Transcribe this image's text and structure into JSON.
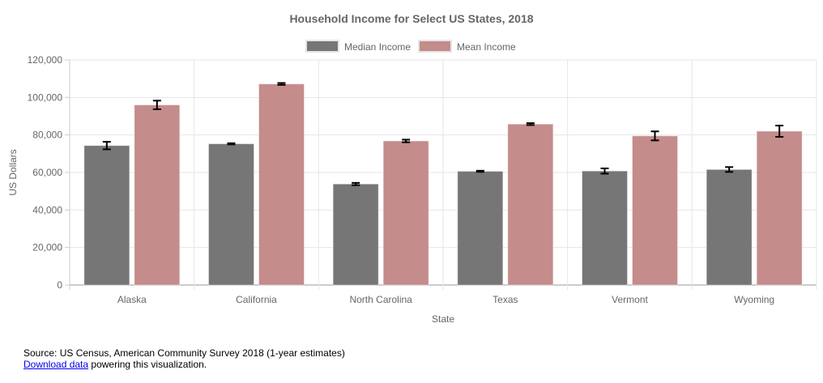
{
  "chart_data": {
    "type": "bar",
    "title": "Household Income for Select US States, 2018",
    "xlabel": "State",
    "ylabel": "US Dollars",
    "categories": [
      "Alaska",
      "California",
      "North Carolina",
      "Texas",
      "Vermont",
      "Wyoming"
    ],
    "series": [
      {
        "name": "Median Income",
        "color": "#767676",
        "values": [
          74346,
          75277,
          53855,
          60629,
          60782,
          61584
        ],
        "error": [
          2000,
          300,
          600,
          300,
          1400,
          1300
        ]
      },
      {
        "name": "Mean Income",
        "color": "#c48c8b",
        "values": [
          96000,
          107200,
          76800,
          85800,
          79500,
          82000
        ],
        "error": [
          2300,
          500,
          700,
          500,
          2400,
          3000
        ]
      }
    ],
    "ylim": [
      0,
      120000
    ],
    "yticks": [
      0,
      20000,
      40000,
      60000,
      80000,
      100000,
      120000
    ],
    "ytick_labels": [
      "0",
      "20,000",
      "40,000",
      "60,000",
      "80,000",
      "100,000",
      "120,000"
    ],
    "grid": true,
    "legend_position": "top-center"
  },
  "footer": {
    "source_text": "Source: US Census, American Community Survey 2018 (1-year estimates)",
    "link_text": "Download data",
    "link_suffix": " powering this visualization."
  }
}
